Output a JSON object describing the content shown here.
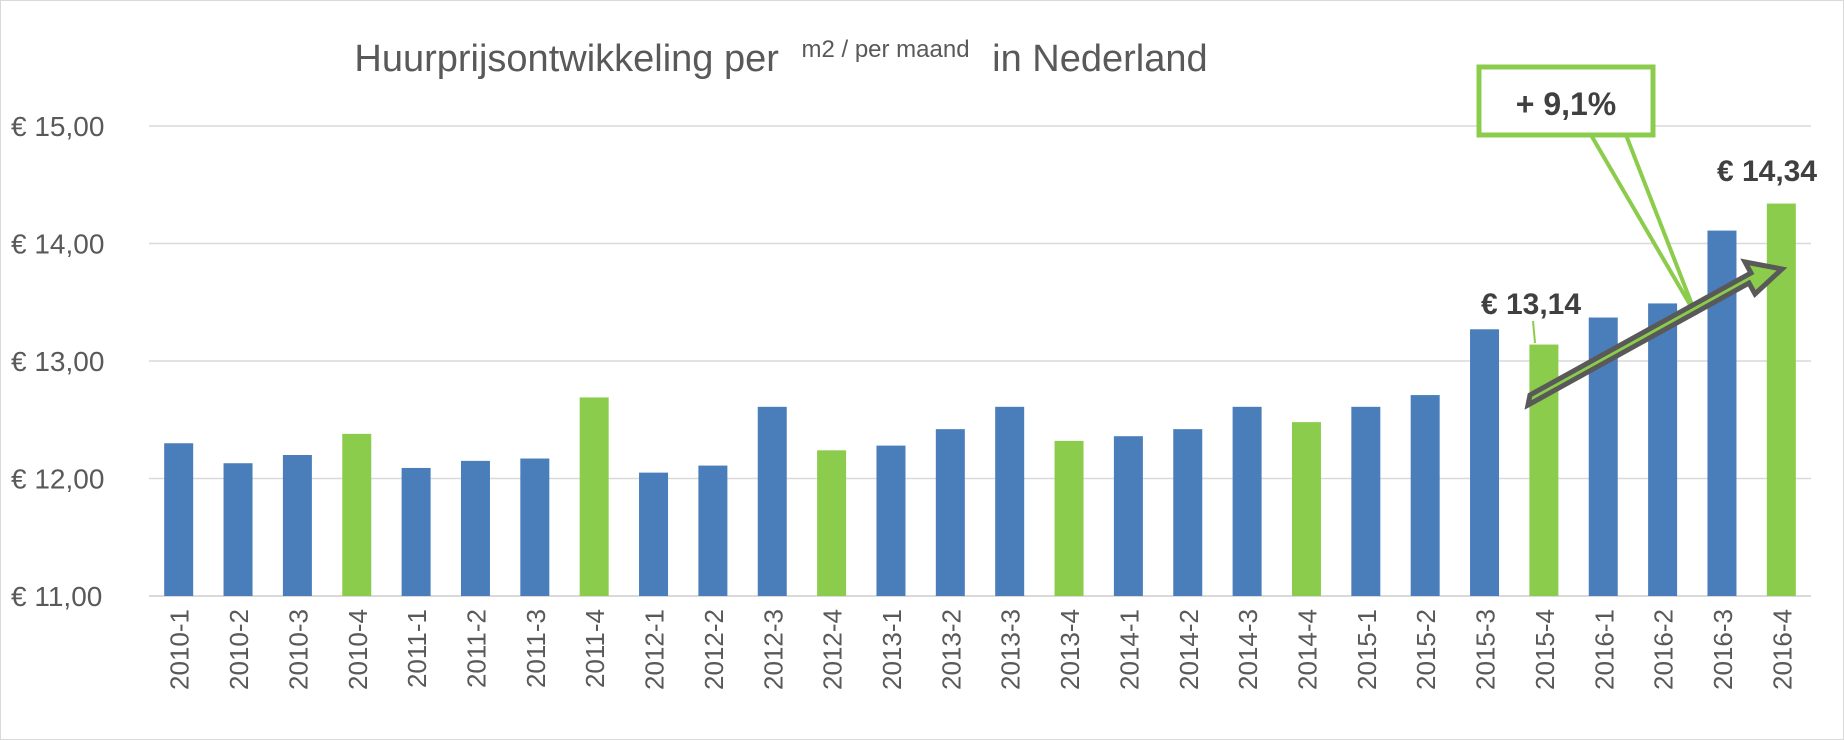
{
  "chart_data": {
    "type": "bar",
    "title_main": "Huurprijsontwikkeling per",
    "title_superscript": "m2 / per maand",
    "title_tail": "in Nederland",
    "categories": [
      "2010-1",
      "2010-2",
      "2010-3",
      "2010-4",
      "2011-1",
      "2011-2",
      "2011-3",
      "2011-4",
      "2012-1",
      "2012-2",
      "2012-3",
      "2012-4",
      "2013-1",
      "2013-2",
      "2013-3",
      "2013-4",
      "2014-1",
      "2014-2",
      "2014-3",
      "2014-4",
      "2015-1",
      "2015-2",
      "2015-3",
      "2015-4",
      "2016-1",
      "2016-2",
      "2016-3",
      "2016-4"
    ],
    "values": [
      12.3,
      12.13,
      12.2,
      12.38,
      12.09,
      12.15,
      12.17,
      12.69,
      12.05,
      12.11,
      12.61,
      12.24,
      12.28,
      12.42,
      12.61,
      12.32,
      12.36,
      12.42,
      12.61,
      12.48,
      12.61,
      12.71,
      13.27,
      13.14,
      13.37,
      13.49,
      14.11,
      14.34
    ],
    "highlight_quarter_suffix": "-4",
    "ylim": [
      11,
      15
    ],
    "yticks": [
      "€ 11,00",
      "€ 12,00",
      "€ 13,00",
      "€ 14,00",
      "€ 15,00"
    ],
    "ytick_values": [
      11,
      12,
      13,
      14,
      15
    ],
    "gridlines": true,
    "annotations": {
      "label_2015_4": "€ 13,14",
      "label_2016_4": "€ 14,34",
      "callout": "+ 9,1%"
    }
  },
  "colors": {
    "blue": "#4a7ebb",
    "green": "#8ccc4d",
    "grid": "#d9d9d9",
    "axis_text": "#595959",
    "title_text": "#595959",
    "arrow_fill": "#8ccc4d",
    "arrow_stroke": "#595959",
    "callout_border": "#8ccc4d"
  }
}
